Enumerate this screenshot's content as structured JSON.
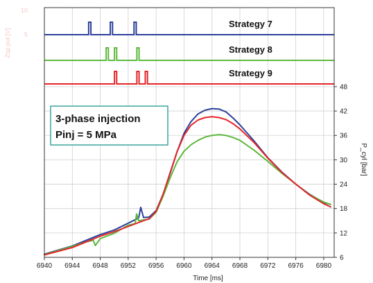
{
  "chart_data": {
    "type": "line",
    "xlabel": "Time [ms]",
    "ylabel": "P_cyl [bar]",
    "xlim": [
      6940,
      6981.5
    ],
    "ylim": [
      6,
      48.5
    ],
    "x_ticks": [
      6940,
      6944,
      6948,
      6952,
      6956,
      6960,
      6964,
      6968,
      6972,
      6976,
      6980
    ],
    "y_ticks": [
      6,
      12,
      18,
      24,
      30,
      36,
      42,
      48
    ],
    "ghost_axis": {
      "label": "Zsp.pul [V]",
      "ticks": [
        "10",
        "5"
      ]
    },
    "grid": true,
    "annotation": {
      "line1": "3-phase injection",
      "line2": "Pinj = 5 MPa"
    },
    "colors": {
      "strategy7": "#2b3f99",
      "strategy8": "#5cb83c",
      "strategy9": "#e42528"
    },
    "injection_traces": [
      {
        "name": "Strategy 7",
        "color": "#2b3f99",
        "pulses_ms": [
          6946.5,
          6949.6,
          6953.0
        ]
      },
      {
        "name": "Strategy 8",
        "color": "#5cb83c",
        "pulses_ms": [
          6949.0,
          6950.2,
          6953.4
        ]
      },
      {
        "name": "Strategy 9",
        "color": "#e42528",
        "pulses_ms": [
          6950.2,
          6953.4,
          6954.6
        ]
      }
    ],
    "series": [
      {
        "name": "Strategy 7",
        "color": "#2b3f99",
        "x": [
          6940,
          6944,
          6948,
          6950,
          6952,
          6953.5,
          6953.8,
          6954.2,
          6955,
          6956,
          6957,
          6958,
          6959,
          6960,
          6961,
          6962,
          6963,
          6964,
          6965,
          6966,
          6967,
          6968,
          6970,
          6972,
          6974,
          6976,
          6978,
          6980,
          6981
        ],
        "y": [
          6.8,
          8.8,
          11.6,
          12.7,
          14.4,
          15.7,
          18.3,
          15.8,
          15.9,
          17.5,
          21.5,
          26.6,
          32.0,
          36.5,
          39.4,
          41.3,
          42.2,
          42.6,
          42.5,
          41.8,
          40.3,
          38.6,
          34.7,
          30.5,
          27.0,
          24.0,
          21.5,
          19.5,
          19.0
        ]
      },
      {
        "name": "Strategy 8",
        "color": "#5cb83c",
        "x": [
          6940,
          6944,
          6946,
          6947,
          6947.3,
          6948,
          6950,
          6952,
          6953,
          6953.2,
          6953.5,
          6955,
          6956,
          6957,
          6958,
          6959,
          6960,
          6961,
          6962,
          6963,
          6964,
          6965,
          6966,
          6967,
          6968,
          6970,
          6972,
          6974,
          6976,
          6978,
          6980,
          6981
        ],
        "y": [
          6.7,
          8.7,
          9.8,
          10.2,
          8.9,
          10.6,
          11.9,
          13.9,
          14.3,
          16.7,
          15.0,
          15.4,
          17.1,
          21.0,
          25.5,
          29.5,
          32.1,
          33.7,
          34.8,
          35.6,
          36.0,
          36.2,
          36.0,
          35.5,
          34.8,
          32.4,
          29.6,
          26.7,
          24.0,
          21.4,
          19.6,
          19.0
        ]
      },
      {
        "name": "Strategy 9",
        "color": "#e42528",
        "x": [
          6940,
          6944,
          6948,
          6950,
          6952,
          6954,
          6955,
          6956,
          6957,
          6958,
          6959,
          6960,
          6961,
          6962,
          6963,
          6964,
          6965,
          6966,
          6967,
          6968,
          6970,
          6972,
          6974,
          6976,
          6978,
          6980,
          6981
        ],
        "y": [
          6.6,
          8.4,
          11.2,
          12.3,
          13.6,
          14.9,
          15.5,
          17.3,
          21.5,
          26.8,
          32.0,
          36.0,
          38.5,
          39.8,
          40.4,
          40.6,
          40.4,
          39.9,
          38.9,
          37.6,
          34.3,
          30.4,
          26.9,
          24.0,
          21.3,
          19.2,
          18.4
        ]
      }
    ]
  }
}
